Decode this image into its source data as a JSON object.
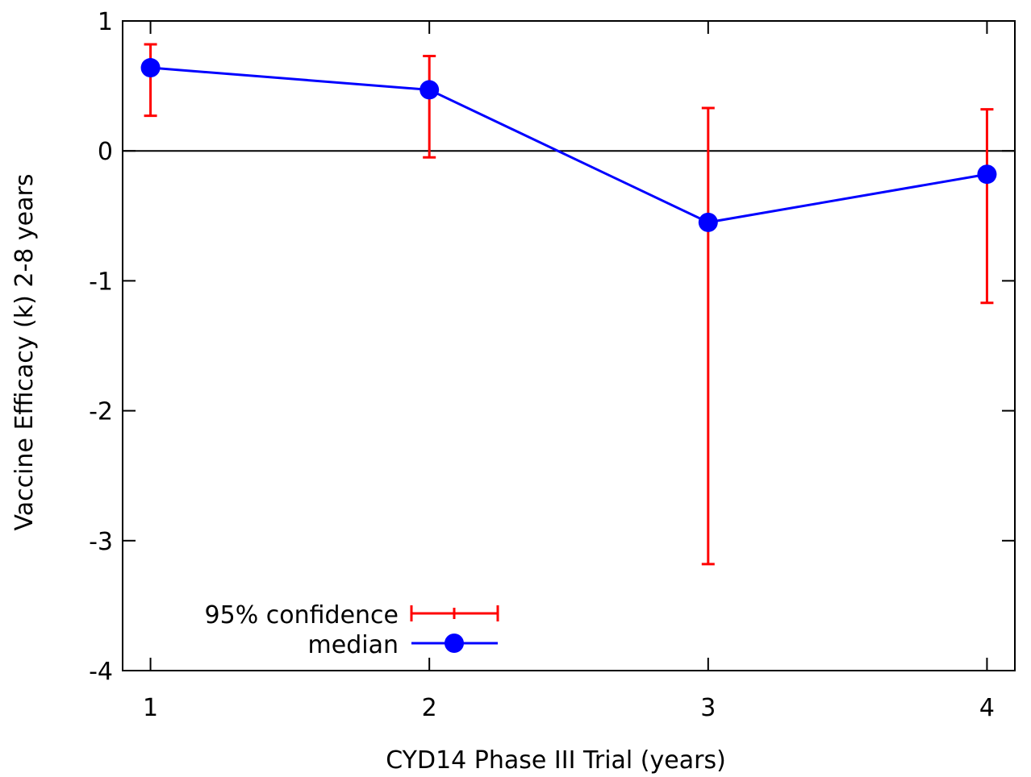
{
  "chart_data": {
    "type": "line",
    "title": "",
    "xlabel": "CYD14 Phase III Trial (years)",
    "ylabel": "Vaccine Efficacy (k) 2-8 years",
    "x": [
      1,
      2,
      3,
      4
    ],
    "xticks": [
      "1",
      "2",
      "3",
      "4"
    ],
    "xlim": [
      0.9,
      4.1
    ],
    "yticks": [
      "1",
      "0",
      "-1",
      "-2",
      "-3",
      "-4"
    ],
    "ytick_values": [
      1,
      0,
      -1,
      -2,
      -3,
      -4
    ],
    "ylim": [
      -4,
      1
    ],
    "grid": false,
    "reference_line_y": 0,
    "legend_position": "bottom-left",
    "series": [
      {
        "name": "median",
        "kind": "line-marker",
        "color": "#0000ff",
        "values": [
          0.64,
          0.47,
          -0.55,
          -0.18
        ]
      },
      {
        "name": "95% confidence",
        "kind": "errorbar",
        "color": "#ff0000",
        "lower": [
          0.27,
          -0.05,
          -3.18,
          -1.17
        ],
        "upper": [
          0.82,
          0.73,
          0.33,
          0.32
        ]
      }
    ]
  }
}
